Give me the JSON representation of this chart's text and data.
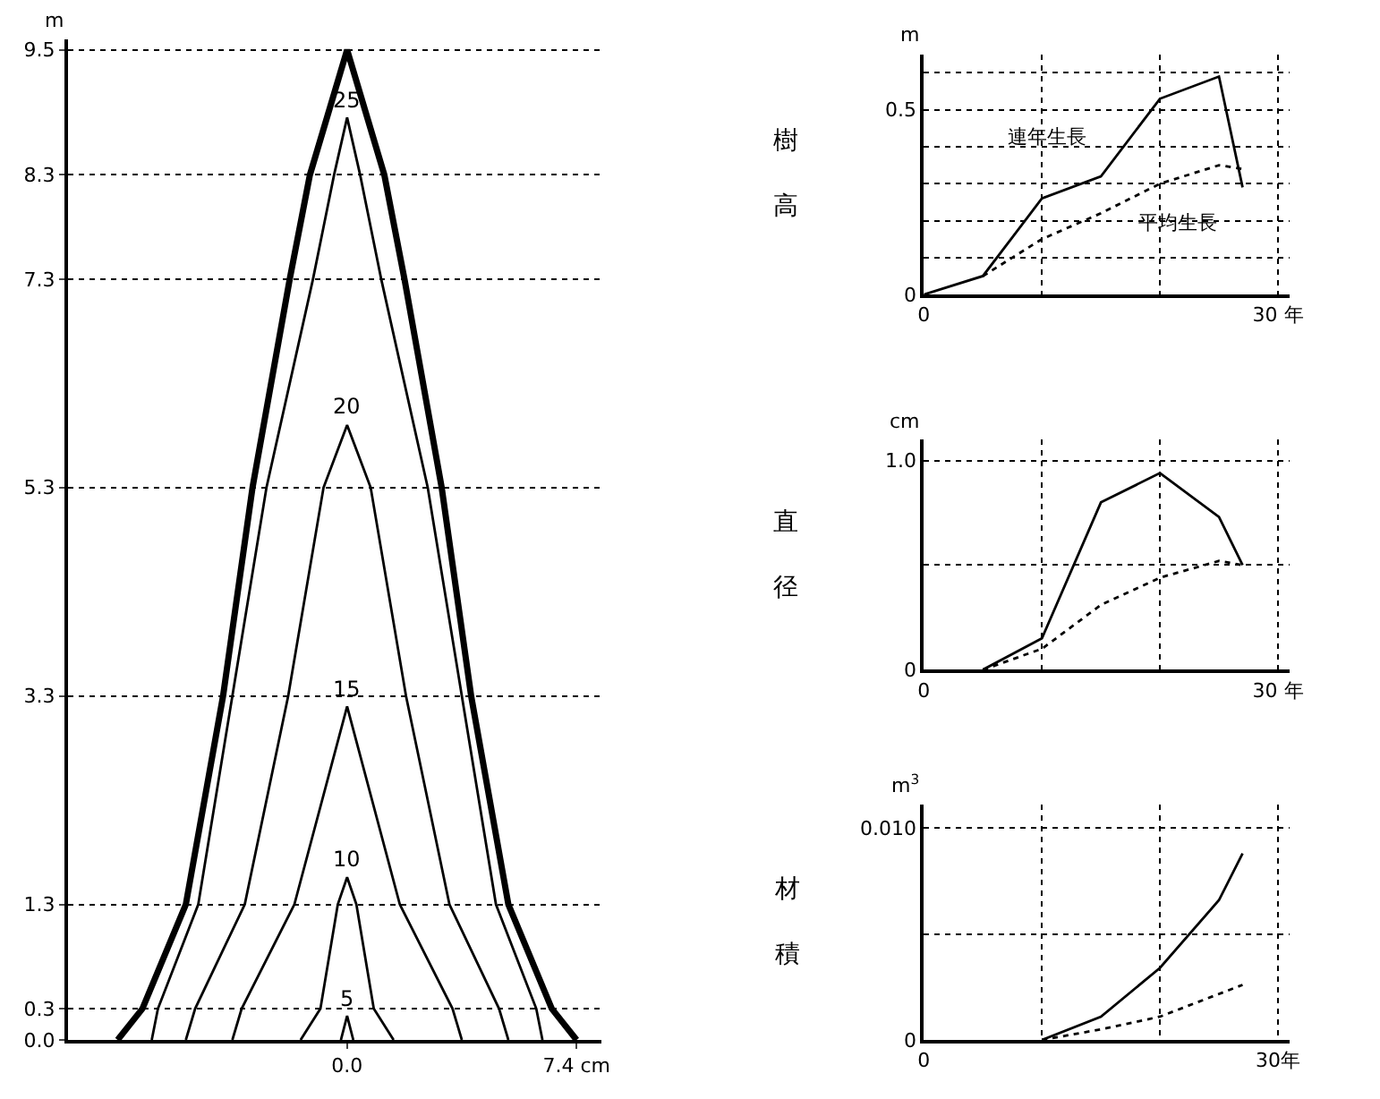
{
  "chart_data": [
    {
      "type": "line",
      "ylabel": "m",
      "grid": "y",
      "xlim": [
        -9.0,
        8.2
      ],
      "ylim": [
        0,
        9.6
      ],
      "xticks": [
        {
          "value": 0,
          "label": "0.0"
        },
        {
          "value": 7.4,
          "label": "7.4 cm"
        }
      ],
      "yticks": [
        {
          "value": 0,
          "label": "0.0"
        },
        0.3,
        1.3,
        3.3,
        5.3,
        7.3,
        8.3,
        9.5
      ],
      "series": [
        {
          "name": "5",
          "color": "#000000",
          "line_style": "solid",
          "x": [
            -0.2,
            0,
            0.2
          ],
          "values": [
            0,
            0.23,
            0
          ]
        },
        {
          "name": "10",
          "color": "#000000",
          "line_style": "solid",
          "x": [
            -1.5,
            -0.86,
            -0.3,
            0,
            0.3,
            0.86,
            1.5
          ],
          "values": [
            0,
            0.3,
            1.3,
            1.56,
            1.3,
            0.3,
            0
          ]
        },
        {
          "name": "15",
          "color": "#000000",
          "line_style": "solid",
          "x": [
            -3.7,
            -3.4,
            -1.7,
            0,
            1.7,
            3.4,
            3.7
          ],
          "values": [
            0,
            0.3,
            1.3,
            3.2,
            1.3,
            0.3,
            0
          ]
        },
        {
          "name": "20",
          "color": "#000000",
          "line_style": "solid",
          "x": [
            -5.2,
            -4.9,
            -3.3,
            -1.9,
            -0.76,
            0,
            0.76,
            1.9,
            3.3,
            4.9,
            5.2
          ],
          "values": [
            0,
            0.3,
            1.3,
            3.3,
            5.3,
            5.9,
            5.3,
            3.3,
            1.3,
            0.3,
            0
          ]
        },
        {
          "name": "25",
          "color": "#000000",
          "line_style": "solid",
          "x": [
            -6.3,
            -6.1,
            -4.8,
            -3.7,
            -2.6,
            -1.1,
            -0.42,
            0,
            0.42,
            1.1,
            2.6,
            3.7,
            4.8,
            6.1,
            6.3
          ],
          "values": [
            0,
            0.3,
            1.3,
            3.3,
            5.3,
            7.3,
            8.3,
            8.85,
            8.3,
            7.3,
            5.3,
            3.3,
            1.3,
            0.3,
            0
          ]
        },
        {
          "color": "#000000",
          "line_style": "solid",
          "x": [
            -7.4,
            -6.6,
            -5.2,
            -4.0,
            -3.05,
            -1.85,
            -1.2,
            0,
            1.2,
            1.85,
            3.05,
            4.0,
            5.2,
            6.6,
            7.4
          ],
          "values": [
            0,
            0.3,
            1.3,
            3.3,
            5.3,
            7.3,
            8.3,
            9.5,
            8.3,
            7.3,
            5.3,
            3.3,
            1.3,
            0.3,
            0
          ]
        }
      ]
    },
    {
      "type": "line",
      "title": "樹高",
      "ylabel": "m",
      "grid": true,
      "xlim": [
        0,
        31
      ],
      "ylim": [
        0,
        0.65
      ],
      "xticks": [
        0,
        {
          "value": 10,
          "label": null
        },
        {
          "value": 20,
          "label": null
        },
        {
          "value": 30,
          "label": "30 年"
        }
      ],
      "yticks": [
        0,
        {
          "value": 0.1,
          "label": null
        },
        {
          "value": 0.2,
          "label": null
        },
        {
          "value": 0.3,
          "label": null
        },
        {
          "value": 0.4,
          "label": null
        },
        0.5,
        {
          "value": 0.6,
          "label": null
        }
      ],
      "series": [
        {
          "name": "連年生長",
          "color": "#000000",
          "line_style": "solid",
          "x": [
            0,
            5,
            10,
            15,
            20,
            25,
            27
          ],
          "values": [
            0,
            0.05,
            0.26,
            0.32,
            0.53,
            0.59,
            0.29
          ]
        },
        {
          "name": "平均生長",
          "color": "#000000",
          "line_style": "dotted",
          "x": [
            5,
            10,
            15,
            20,
            25,
            27
          ],
          "values": [
            0.05,
            0.15,
            0.22,
            0.3,
            0.35,
            0.34
          ]
        }
      ]
    },
    {
      "type": "line",
      "title": "直径",
      "ylabel": "cm",
      "grid": true,
      "xlim": [
        0,
        31
      ],
      "ylim": [
        0,
        1.1
      ],
      "xticks": [
        0,
        {
          "value": 10,
          "label": null
        },
        {
          "value": 20,
          "label": null
        },
        {
          "value": 30,
          "label": "30 年"
        }
      ],
      "yticks": [
        0,
        {
          "value": 0.5,
          "label": null
        },
        {
          "value": 1.0,
          "label": "1.0"
        }
      ],
      "series": [
        {
          "color": "#000000",
          "line_style": "solid",
          "x": [
            5,
            10,
            15,
            20,
            25,
            27
          ],
          "values": [
            0,
            0.15,
            0.8,
            0.94,
            0.73,
            0.5
          ]
        },
        {
          "color": "#000000",
          "line_style": "dotted",
          "x": [
            5,
            10,
            15,
            20,
            25,
            27
          ],
          "values": [
            0,
            0.1,
            0.31,
            0.44,
            0.52,
            0.5
          ]
        }
      ]
    },
    {
      "type": "line",
      "title": "材積",
      "ylabel": "m$^{3}$",
      "grid": true,
      "xlim": [
        0,
        31
      ],
      "ylim": [
        0,
        0.0111
      ],
      "xticks": [
        0,
        {
          "value": 10,
          "label": null
        },
        {
          "value": 20,
          "label": null
        },
        {
          "value": 30,
          "label": "30年"
        }
      ],
      "yticks": [
        0,
        {
          "value": 0.005,
          "label": null
        },
        {
          "value": 0.01,
          "label": "0.010"
        }
      ],
      "series": [
        {
          "color": "#000000",
          "line_style": "solid",
          "x": [
            10,
            15,
            20,
            25,
            27
          ],
          "values": [
            0,
            0.0011,
            0.0034,
            0.0066,
            0.0088
          ]
        },
        {
          "color": "#000000",
          "line_style": "dotted",
          "x": [
            10,
            15,
            20,
            27
          ],
          "values": [
            0,
            0.0005,
            0.0011,
            0.0026
          ]
        }
      ]
    }
  ]
}
